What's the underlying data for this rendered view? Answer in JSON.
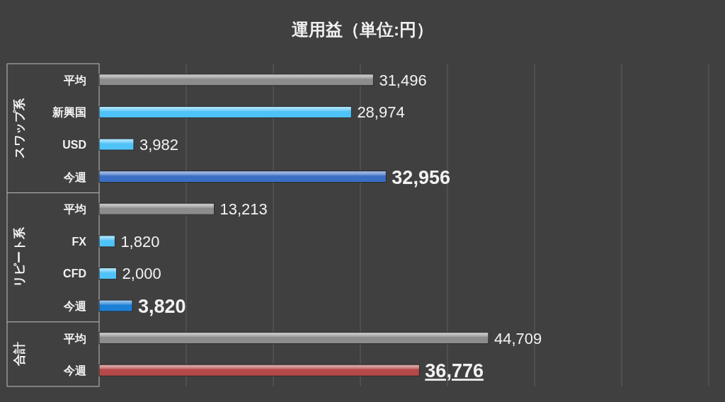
{
  "chart_data": {
    "type": "bar",
    "orientation": "horizontal",
    "title": "運用益（単位:円）",
    "categories": [
      "平均",
      "新興国",
      "USD",
      "今週",
      "平均",
      "FX",
      "CFD",
      "今週",
      "平均",
      "今週"
    ],
    "values": [
      31496,
      28974,
      3982,
      32956,
      13213,
      1820,
      2000,
      3820,
      44709,
      36776
    ],
    "colors": [
      "#8c8c8c",
      "#4fc3f7",
      "#4fc3f7",
      "#3b6fc6",
      "#8c8c8c",
      "#4fc3f7",
      "#4fc3f7",
      "#1c7fd6",
      "#8c8c8c",
      "#b54848"
    ],
    "annotations": [
      "スワップ系",
      "リピート系",
      "合計"
    ],
    "value_labels": [
      "31,496",
      "28,974",
      "3,982",
      "32,956",
      "13,213",
      "1,820",
      "2,000",
      "3,820",
      "44,709",
      "36,776"
    ],
    "tick_labels": "y",
    "grid": "x"
  }
}
